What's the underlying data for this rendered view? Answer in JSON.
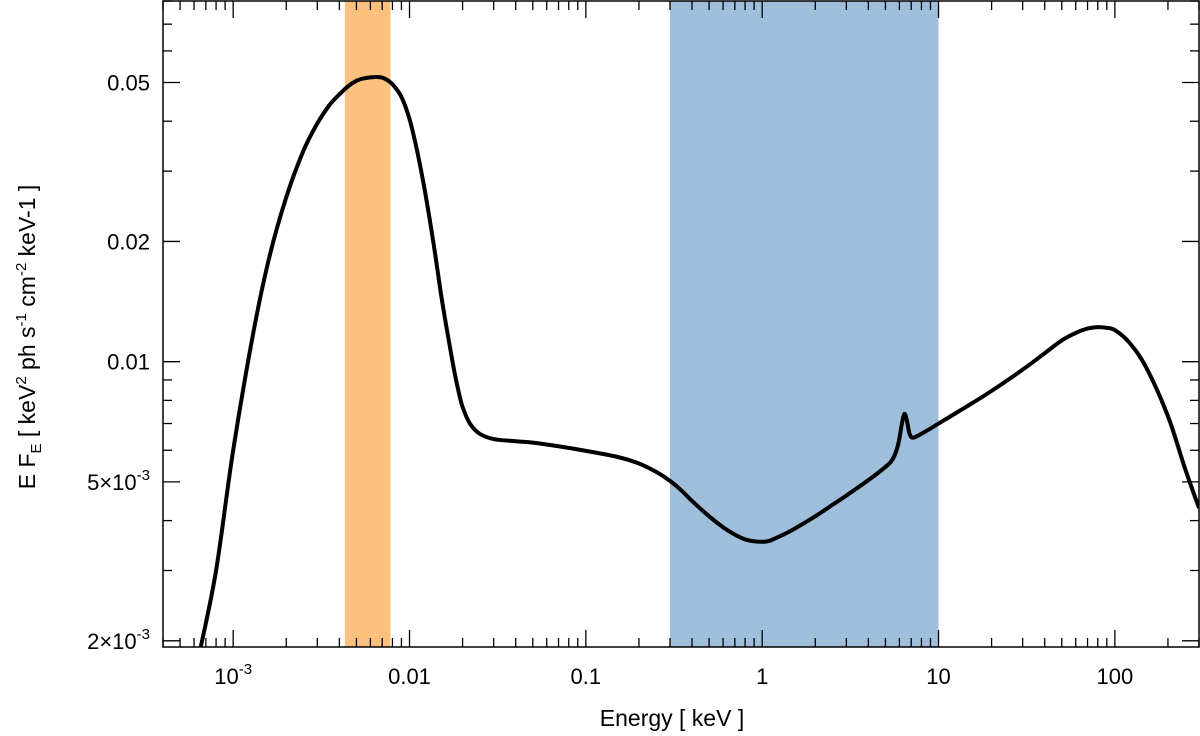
{
  "chart_data": {
    "type": "line",
    "xlabel": "Energy [ keV ]",
    "ylabel_parts": {
      "a": "E F",
      "sub_E": "E",
      "b": " [ keV",
      "sup_2": "2",
      "c": " ph s",
      "sup_m1": "-1",
      "d": " cm",
      "sup_m2": "-2",
      "e": " keV-1 ]"
    },
    "x_scale": "log",
    "y_scale": "log",
    "xlim": [
      0.0004,
      300
    ],
    "ylim": [
      0.00193,
      0.08
    ],
    "x_ticks": [
      {
        "value": 0.001,
        "label_base": "10",
        "label_exp": "-3"
      },
      {
        "value": 0.01,
        "label": "0.01"
      },
      {
        "value": 0.1,
        "label": "0.1"
      },
      {
        "value": 1,
        "label": "1"
      },
      {
        "value": 10,
        "label": "10"
      },
      {
        "value": 100,
        "label": "100"
      }
    ],
    "y_ticks": [
      {
        "value": 0.002,
        "label_base": "2×10",
        "label_exp": "-3"
      },
      {
        "value": 0.005,
        "label_base": "5×10",
        "label_exp": "-3"
      },
      {
        "value": 0.01,
        "label": "0.01"
      },
      {
        "value": 0.02,
        "label": "0.02"
      },
      {
        "value": 0.05,
        "label": "0.05"
      }
    ],
    "bands": [
      {
        "x_range": [
          0.0043,
          0.0078
        ],
        "color": "#fcc17f"
      },
      {
        "x_range": [
          0.3,
          10
        ],
        "color": "#9ebedb"
      }
    ],
    "series": [
      {
        "color": "#000000",
        "points": [
          [
            0.00065,
            0.0019
          ],
          [
            0.0008,
            0.003
          ],
          [
            0.001,
            0.006
          ],
          [
            0.0013,
            0.0118
          ],
          [
            0.0016,
            0.0182
          ],
          [
            0.002,
            0.0258
          ],
          [
            0.0025,
            0.0337
          ],
          [
            0.003,
            0.0395
          ],
          [
            0.0035,
            0.0438
          ],
          [
            0.004,
            0.0467
          ],
          [
            0.0045,
            0.049
          ],
          [
            0.005,
            0.0505
          ],
          [
            0.0055,
            0.0512
          ],
          [
            0.006,
            0.0515
          ],
          [
            0.0066,
            0.0516
          ],
          [
            0.0072,
            0.0512
          ],
          [
            0.008,
            0.0495
          ],
          [
            0.009,
            0.046
          ],
          [
            0.01,
            0.0405
          ],
          [
            0.011,
            0.034
          ],
          [
            0.012,
            0.028
          ],
          [
            0.013,
            0.0228
          ],
          [
            0.014,
            0.0185
          ],
          [
            0.015,
            0.015
          ],
          [
            0.016,
            0.0126
          ],
          [
            0.017,
            0.0108
          ],
          [
            0.018,
            0.0094
          ],
          [
            0.019,
            0.0084
          ],
          [
            0.02,
            0.0077
          ],
          [
            0.022,
            0.007
          ],
          [
            0.025,
            0.0066
          ],
          [
            0.03,
            0.0064
          ],
          [
            0.04,
            0.00632
          ],
          [
            0.05,
            0.00627
          ],
          [
            0.07,
            0.00614
          ],
          [
            0.1,
            0.00598
          ],
          [
            0.15,
            0.00578
          ],
          [
            0.2,
            0.00556
          ],
          [
            0.25,
            0.0053
          ],
          [
            0.3,
            0.00503
          ],
          [
            0.35,
            0.00475
          ],
          [
            0.4,
            0.00448
          ],
          [
            0.5,
            0.0041
          ],
          [
            0.6,
            0.00385
          ],
          [
            0.7,
            0.00369
          ],
          [
            0.8,
            0.00359
          ],
          [
            0.9,
            0.00355
          ],
          [
            1.0,
            0.00354
          ],
          [
            1.1,
            0.00356
          ],
          [
            1.3,
            0.00368
          ],
          [
            1.5,
            0.0038
          ],
          [
            2.0,
            0.0041
          ],
          [
            2.5,
            0.00438
          ],
          [
            3.0,
            0.00462
          ],
          [
            4.0,
            0.00505
          ],
          [
            5.0,
            0.00545
          ],
          [
            5.5,
            0.0057
          ],
          [
            5.9,
            0.0062
          ],
          [
            6.2,
            0.007
          ],
          [
            6.4,
            0.0074
          ],
          [
            6.6,
            0.00715
          ],
          [
            6.85,
            0.0066
          ],
          [
            7.1,
            0.00645
          ],
          [
            7.5,
            0.0065
          ],
          [
            8.0,
            0.0066
          ],
          [
            9.0,
            0.0068
          ],
          [
            10,
            0.007
          ],
          [
            15,
            0.0078
          ],
          [
            20,
            0.00845
          ],
          [
            30,
            0.00955
          ],
          [
            40,
            0.0105
          ],
          [
            50,
            0.0113
          ],
          [
            60,
            0.0118
          ],
          [
            70,
            0.0121
          ],
          [
            80,
            0.0122
          ],
          [
            90,
            0.01215
          ],
          [
            100,
            0.012
          ],
          [
            120,
            0.0112
          ],
          [
            150,
            0.0097
          ],
          [
            200,
            0.0073
          ],
          [
            250,
            0.0054
          ],
          [
            300,
            0.0043
          ]
        ]
      }
    ]
  }
}
